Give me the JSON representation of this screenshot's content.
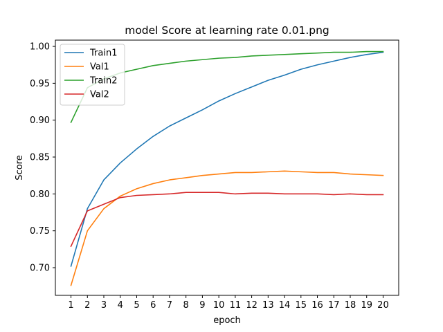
{
  "chart_data": {
    "type": "line",
    "title": "model Score at learning rate 0.01.png",
    "xlabel": "epoch",
    "ylabel": "Score",
    "x": [
      1,
      2,
      3,
      4,
      5,
      6,
      7,
      8,
      9,
      10,
      11,
      12,
      13,
      14,
      15,
      16,
      17,
      18,
      19,
      20
    ],
    "xticks": [
      "1",
      "2",
      "3",
      "4",
      "5",
      "6",
      "7",
      "8",
      "9",
      "10",
      "11",
      "12",
      "13",
      "14",
      "15",
      "16",
      "17",
      "18",
      "19",
      "20"
    ],
    "yticks": [
      "0.70",
      "0.75",
      "0.80",
      "0.85",
      "0.90",
      "0.95",
      "1.00"
    ],
    "xlim": [
      0.05,
      20.95
    ],
    "ylim": [
      0.6625,
      1.0085
    ],
    "grid": false,
    "legend_position": "top-left",
    "series": [
      {
        "name": "Train1",
        "color": "#1f77b4",
        "values": [
          0.702,
          0.78,
          0.819,
          0.842,
          0.861,
          0.878,
          0.892,
          0.903,
          0.914,
          0.926,
          0.936,
          0.945,
          0.954,
          0.961,
          0.969,
          0.975,
          0.98,
          0.985,
          0.989,
          0.992
        ]
      },
      {
        "name": "Val1",
        "color": "#ff7f0e",
        "values": [
          0.676,
          0.75,
          0.78,
          0.797,
          0.807,
          0.814,
          0.819,
          0.822,
          0.825,
          0.827,
          0.829,
          0.829,
          0.83,
          0.831,
          0.83,
          0.829,
          0.829,
          0.827,
          0.826,
          0.825
        ]
      },
      {
        "name": "Train2",
        "color": "#2ca02c",
        "values": [
          0.897,
          0.944,
          0.956,
          0.964,
          0.969,
          0.974,
          0.977,
          0.98,
          0.982,
          0.984,
          0.985,
          0.987,
          0.988,
          0.989,
          0.99,
          0.991,
          0.992,
          0.992,
          0.993,
          0.993
        ]
      },
      {
        "name": "Val2",
        "color": "#d62728",
        "values": [
          0.729,
          0.777,
          0.786,
          0.795,
          0.798,
          0.799,
          0.8,
          0.802,
          0.802,
          0.802,
          0.8,
          0.801,
          0.801,
          0.8,
          0.8,
          0.8,
          0.799,
          0.8,
          0.799,
          0.799
        ]
      }
    ]
  }
}
